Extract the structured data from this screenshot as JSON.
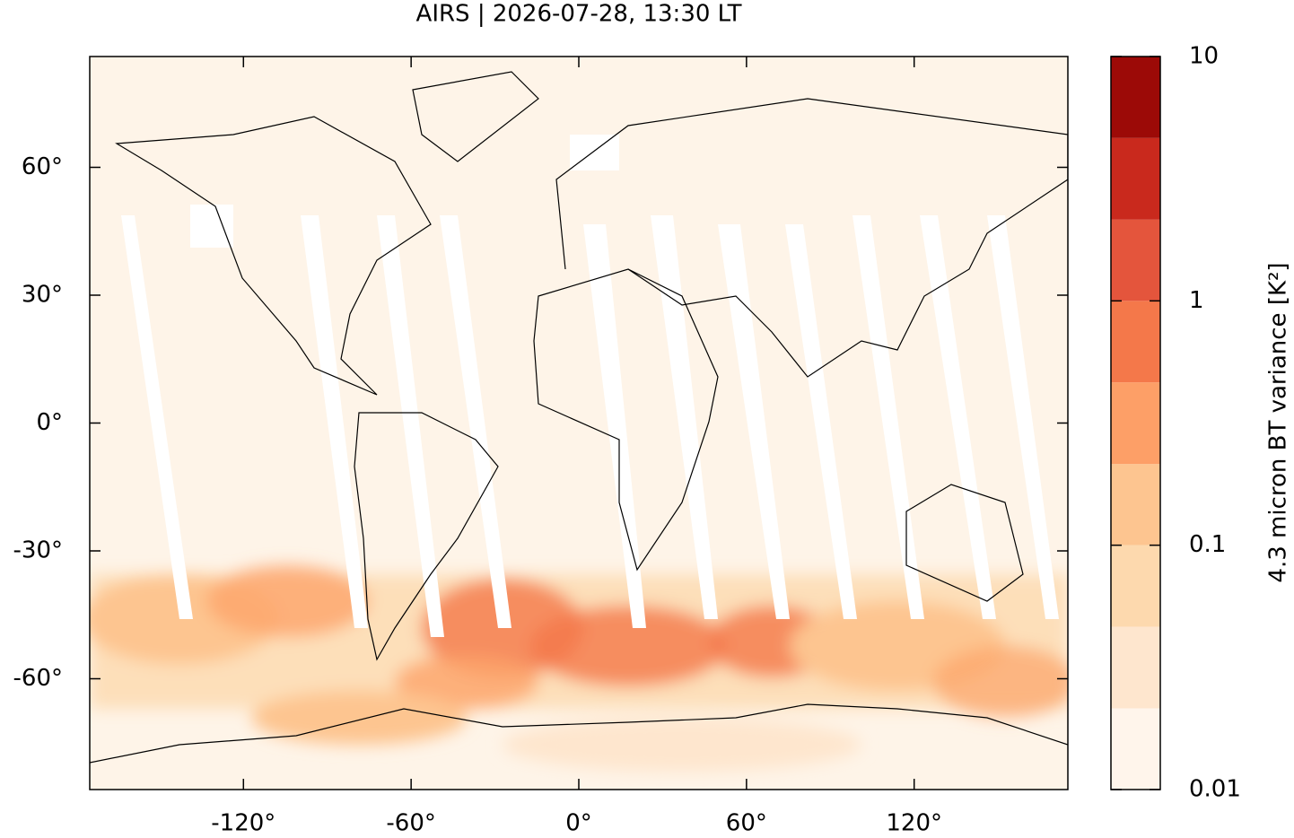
{
  "title": "AIRS | 2026-07-28, 13:30 LT",
  "map": {
    "xlim": [
      -175,
      175
    ],
    "ylim": [
      -86,
      86
    ],
    "xticks": [
      {
        "value": -120,
        "label": "-120°"
      },
      {
        "value": -60,
        "label": "-60°"
      },
      {
        "value": 0,
        "label": "0°"
      },
      {
        "value": 60,
        "label": "60°"
      },
      {
        "value": 120,
        "label": "120°"
      }
    ],
    "yticks": [
      {
        "value": -60,
        "label": "-60°"
      },
      {
        "value": -30,
        "label": "-30°"
      },
      {
        "value": 0,
        "label": "0°"
      },
      {
        "value": 30,
        "label": "30°"
      },
      {
        "value": 60,
        "label": "60°"
      }
    ]
  },
  "colorbar": {
    "label": "4.3 micron BT variance [K²]",
    "scale": "log",
    "levels": [
      0.01,
      0.0215,
      0.0464,
      0.1,
      0.215,
      0.464,
      1,
      2.15,
      4.64,
      10
    ],
    "colors": [
      "#fff5eb",
      "#fee6ce",
      "#fdd9ae",
      "#fdc590",
      "#fd9f67",
      "#f4784a",
      "#e4553c",
      "#c9291d",
      "#9c0a07"
    ],
    "ticks": [
      0.01,
      0.1,
      1,
      10
    ]
  }
}
